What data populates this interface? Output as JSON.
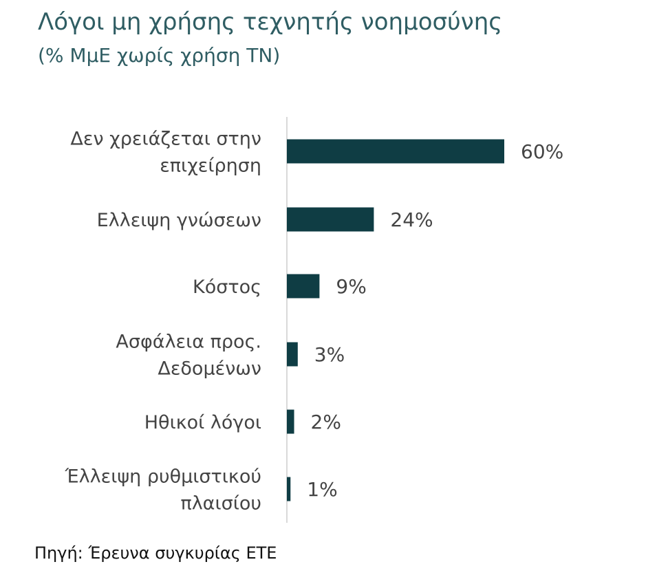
{
  "chart_data": {
    "type": "bar",
    "orientation": "horizontal",
    "title": "Λόγοι μη χρήσης τεχνητής νοημοσύνης",
    "subtitle": "(% ΜμΕ χωρίς χρήση ΤΝ)",
    "categories": [
      [
        "Δεν χρειάζεται στην",
        "επιχείρηση"
      ],
      [
        "Ελλειψη γνώσεων"
      ],
      [
        "Κόστος"
      ],
      [
        "Ασφάλεια προς.",
        "Δεδομένων"
      ],
      [
        "Ηθικοί λόγοι"
      ],
      [
        "Έλλειψη ρυθμιστικού",
        "πλαισίου"
      ]
    ],
    "values": [
      60,
      24,
      9,
      3,
      2,
      1
    ],
    "value_labels": [
      "60%",
      "24%",
      "9%",
      "3%",
      "2%",
      "1%"
    ],
    "xlim": [
      0,
      60
    ],
    "grid": false,
    "legend": "none",
    "colors": {
      "bar": "#0f3d44",
      "axis": "#d9d9d9",
      "title": "#2f5d63",
      "text": "#444444"
    }
  },
  "source": "Πηγή: Έρευνα συγκυρίας ΕΤΕ"
}
